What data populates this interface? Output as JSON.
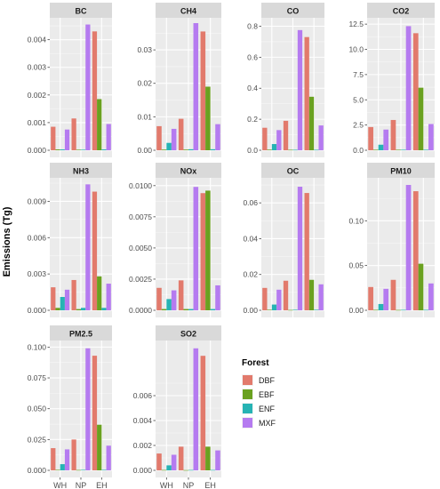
{
  "figure": {
    "ylabel": "Emissions (Tg)",
    "legend": {
      "title": "Forest",
      "entries": [
        {
          "label": "DBF",
          "color": "#e27a6c"
        },
        {
          "label": "EBF",
          "color": "#6aa120"
        },
        {
          "label": "ENF",
          "color": "#26b3b4"
        },
        {
          "label": "MXF",
          "color": "#b57bf0"
        }
      ]
    }
  },
  "chart_data": [
    {
      "type": "bar",
      "title": "BC",
      "categories": [
        "WH",
        "NP",
        "EH"
      ],
      "ylim": [
        0,
        0.0046
      ],
      "ticks": [
        "0.000",
        "0.001",
        "0.002",
        "0.003",
        "0.004"
      ],
      "tick_values": [
        0,
        0.001,
        0.002,
        0.003,
        0.004
      ],
      "series": [
        {
          "name": "DBF",
          "values": [
            0.00085,
            0.00115,
            0.0043
          ]
        },
        {
          "name": "EBF",
          "values": [
            3e-05,
            2e-05,
            0.00185
          ]
        },
        {
          "name": "ENF",
          "values": [
            3e-05,
            2e-05,
            3e-05
          ]
        },
        {
          "name": "MXF",
          "values": [
            0.00075,
            0.00455,
            0.00095
          ]
        }
      ]
    },
    {
      "type": "bar",
      "title": "CH4",
      "categories": [
        "WH",
        "NP",
        "EH"
      ],
      "ylim": [
        0,
        0.038
      ],
      "ticks": [
        "0.00",
        "0.01",
        "0.02",
        "0.03"
      ],
      "tick_values": [
        0,
        0.01,
        0.02,
        0.03
      ],
      "series": [
        {
          "name": "DBF",
          "values": [
            0.0072,
            0.0094,
            0.0355
          ]
        },
        {
          "name": "EBF",
          "values": [
            0.0002,
            0.0002,
            0.019
          ]
        },
        {
          "name": "ENF",
          "values": [
            0.0022,
            0.0003,
            0.0003
          ]
        },
        {
          "name": "MXF",
          "values": [
            0.0064,
            0.038,
            0.0078
          ]
        }
      ]
    },
    {
      "type": "bar",
      "title": "CO",
      "categories": [
        "WH",
        "NP",
        "EH"
      ],
      "ylim": [
        0,
        0.82
      ],
      "ticks": [
        "0.0",
        "0.2",
        "0.4",
        "0.6",
        "0.8"
      ],
      "tick_values": [
        0,
        0.2,
        0.4,
        0.6,
        0.8
      ],
      "series": [
        {
          "name": "DBF",
          "values": [
            0.145,
            0.19,
            0.73
          ]
        },
        {
          "name": "EBF",
          "values": [
            0.004,
            0.003,
            0.345
          ]
        },
        {
          "name": "ENF",
          "values": [
            0.04,
            0.003,
            0.003
          ]
        },
        {
          "name": "MXF",
          "values": [
            0.13,
            0.775,
            0.16
          ]
        }
      ]
    },
    {
      "type": "bar",
      "title": "CO2",
      "categories": [
        "WH",
        "NP",
        "EH"
      ],
      "ylim": [
        0,
        12.6
      ],
      "ticks": [
        "0.0",
        "2.5",
        "5.0",
        "7.5",
        "10.0",
        "12.5"
      ],
      "tick_values": [
        0,
        2.5,
        5,
        7.5,
        10,
        12.5
      ],
      "series": [
        {
          "name": "DBF",
          "values": [
            2.3,
            3.0,
            11.6
          ]
        },
        {
          "name": "EBF",
          "values": [
            0.05,
            0.05,
            6.2
          ]
        },
        {
          "name": "ENF",
          "values": [
            0.55,
            0.05,
            0.05
          ]
        },
        {
          "name": "MXF",
          "values": [
            2.05,
            12.3,
            2.6
          ]
        }
      ]
    },
    {
      "type": "bar",
      "title": "NH3",
      "categories": [
        "WH",
        "NP",
        "EH"
      ],
      "ylim": [
        0,
        0.0105
      ],
      "ticks": [
        "0.000",
        "0.003",
        "0.006",
        "0.009"
      ],
      "tick_values": [
        0,
        0.003,
        0.006,
        0.009
      ],
      "series": [
        {
          "name": "DBF",
          "values": [
            0.0019,
            0.0025,
            0.0098
          ]
        },
        {
          "name": "EBF",
          "values": [
            0.0002,
            0.0001,
            0.0028
          ]
        },
        {
          "name": "ENF",
          "values": [
            0.0011,
            0.0002,
            0.0002
          ]
        },
        {
          "name": "MXF",
          "values": [
            0.0017,
            0.0104,
            0.0022
          ]
        }
      ]
    },
    {
      "type": "bar",
      "title": "NOx",
      "categories": [
        "WH",
        "NP",
        "EH"
      ],
      "ylim": [
        0,
        0.0102
      ],
      "ticks": [
        "0.0000",
        "0.0025",
        "0.0050",
        "0.0075",
        "0.0100"
      ],
      "tick_values": [
        0,
        0.0025,
        0.005,
        0.0075,
        0.01
      ],
      "series": [
        {
          "name": "DBF",
          "values": [
            0.0018,
            0.0024,
            0.0094
          ]
        },
        {
          "name": "EBF",
          "values": [
            0.0001,
            0.0001,
            0.0096
          ]
        },
        {
          "name": "ENF",
          "values": [
            0.0009,
            0.0001,
            0.0001
          ]
        },
        {
          "name": "MXF",
          "values": [
            0.0016,
            0.0099,
            0.002
          ]
        }
      ]
    },
    {
      "type": "bar",
      "title": "OC",
      "categories": [
        "WH",
        "NP",
        "EH"
      ],
      "ylim": [
        0,
        0.071
      ],
      "ticks": [
        "0.00",
        "0.02",
        "0.04",
        "0.06"
      ],
      "tick_values": [
        0,
        0.02,
        0.04,
        0.06
      ],
      "series": [
        {
          "name": "DBF",
          "values": [
            0.0125,
            0.0165,
            0.0655
          ]
        },
        {
          "name": "EBF",
          "values": [
            0.0003,
            0.0002,
            0.017
          ]
        },
        {
          "name": "ENF",
          "values": [
            0.0032,
            0.0003,
            0.0003
          ]
        },
        {
          "name": "MXF",
          "values": [
            0.0115,
            0.069,
            0.0145
          ]
        }
      ]
    },
    {
      "type": "bar",
      "title": "PM10",
      "categories": [
        "WH",
        "NP",
        "EH"
      ],
      "ylim": [
        0,
        0.142
      ],
      "ticks": [
        "0.00",
        "0.05",
        "0.10"
      ],
      "tick_values": [
        0,
        0.05,
        0.1
      ],
      "series": [
        {
          "name": "DBF",
          "values": [
            0.026,
            0.034,
            0.133
          ]
        },
        {
          "name": "EBF",
          "values": [
            0.0005,
            0.0004,
            0.052
          ]
        },
        {
          "name": "ENF",
          "values": [
            0.007,
            0.0005,
            0.0005
          ]
        },
        {
          "name": "MXF",
          "values": [
            0.024,
            0.14,
            0.03
          ]
        }
      ]
    },
    {
      "type": "bar",
      "title": "PM2.5",
      "categories": [
        "WH",
        "NP",
        "EH"
      ],
      "ylim": [
        0,
        0.101
      ],
      "ticks": [
        "0.000",
        "0.025",
        "0.050",
        "0.075",
        "0.100"
      ],
      "tick_values": [
        0,
        0.025,
        0.05,
        0.075,
        0.1
      ],
      "series": [
        {
          "name": "DBF",
          "values": [
            0.018,
            0.025,
            0.093
          ]
        },
        {
          "name": "EBF",
          "values": [
            0.0004,
            0.0003,
            0.037
          ]
        },
        {
          "name": "ENF",
          "values": [
            0.005,
            0.0004,
            0.0004
          ]
        },
        {
          "name": "MXF",
          "values": [
            0.017,
            0.099,
            0.02
          ]
        }
      ]
    },
    {
      "type": "bar",
      "title": "SO2",
      "categories": [
        "WH",
        "NP",
        "EH"
      ],
      "ylim": [
        0,
        0.01
      ],
      "ticks": [
        "0.000",
        "0.002",
        "0.004",
        "0.006"
      ],
      "tick_values": [
        0,
        0.002,
        0.004,
        0.006
      ],
      "series": [
        {
          "name": "DBF",
          "values": [
            0.00135,
            0.0019,
            0.0092
          ]
        },
        {
          "name": "EBF",
          "values": [
            3e-05,
            2e-05,
            0.0019
          ]
        },
        {
          "name": "ENF",
          "values": [
            0.0004,
            3e-05,
            3e-05
          ]
        },
        {
          "name": "MXF",
          "values": [
            0.00125,
            0.0098,
            0.0016
          ]
        }
      ]
    }
  ]
}
